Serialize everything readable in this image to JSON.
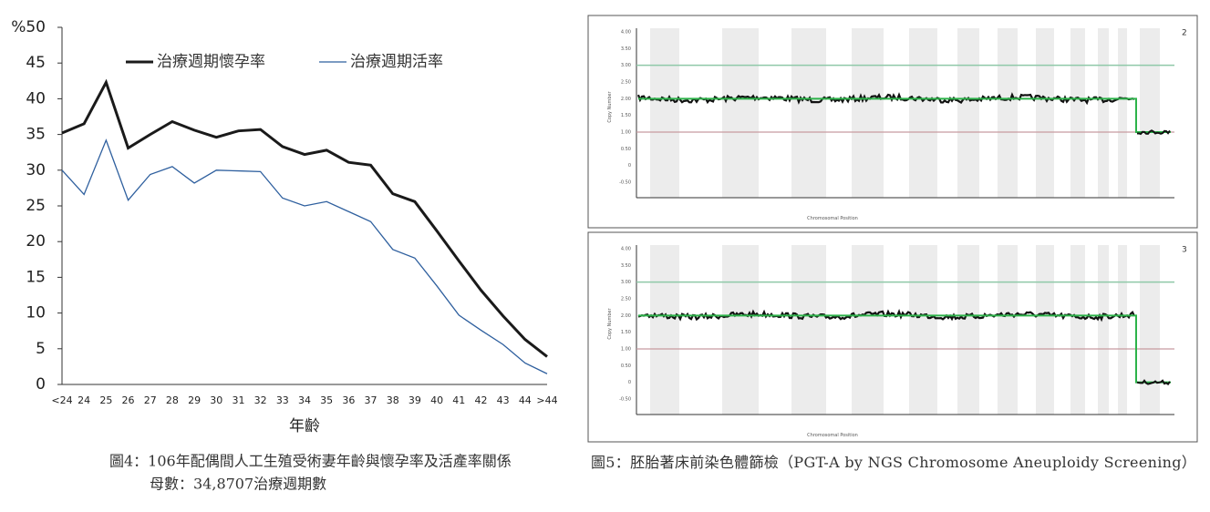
{
  "chart_data": {
    "type": "line",
    "x_label": "年齡",
    "categories": [
      "<24",
      "24",
      "25",
      "26",
      "27",
      "28",
      "29",
      "30",
      "31",
      "32",
      "33",
      "34",
      "35",
      "36",
      "37",
      "38",
      "39",
      "40",
      "41",
      "42",
      "43",
      "44",
      ">44"
    ],
    "series": [
      {
        "name": "治療週期懷孕率",
        "color": "#1a1a1a",
        "values": [
          35.2,
          36.5,
          42.3,
          33.1,
          35,
          36.8,
          35.6,
          34.6,
          35.5,
          35.7,
          33.3,
          32.2,
          32.8,
          31.1,
          30.7,
          26.7,
          25.6,
          21.5,
          17.3,
          13.2,
          9.6,
          6.3,
          3.9
        ]
      },
      {
        "name": "治療週期活率",
        "color": "#2e5f9e",
        "values": [
          30,
          26.6,
          34.2,
          25.8,
          29.4,
          30.5,
          28.2,
          30,
          29.9,
          29.8,
          26.1,
          25,
          25.6,
          24.2,
          22.8,
          18.9,
          17.7,
          13.8,
          9.7,
          7.6,
          5.6,
          3,
          1.5
        ]
      }
    ],
    "ylim": [
      0,
      50
    ],
    "yticks": [
      0,
      5,
      10,
      15,
      20,
      25,
      30,
      35,
      40,
      45,
      {
        "value": 50,
        "label": "%50"
      }
    ],
    "grid": false
  },
  "figure4": {
    "caption": "圖4：106年配偶間人工生殖受術妻年齡與懷孕率及活產率關係",
    "note": "母數：34,8707治療週期數"
  },
  "figure5": {
    "caption": "圖5：胚胎著床前染色體篩檢（PGT-A by NGS Chromosome Aneuploidy Screening）",
    "panels": [
      {
        "label": "2"
      },
      {
        "label": "3"
      }
    ],
    "y_title": "Copy Number",
    "x_title": "Chromosomal Position",
    "yticks": [
      "4.00",
      "3.50",
      "3.00",
      "2.50",
      "2.00",
      "1.50",
      "1.00",
      "0.50",
      "0",
      "-0.50"
    ]
  }
}
